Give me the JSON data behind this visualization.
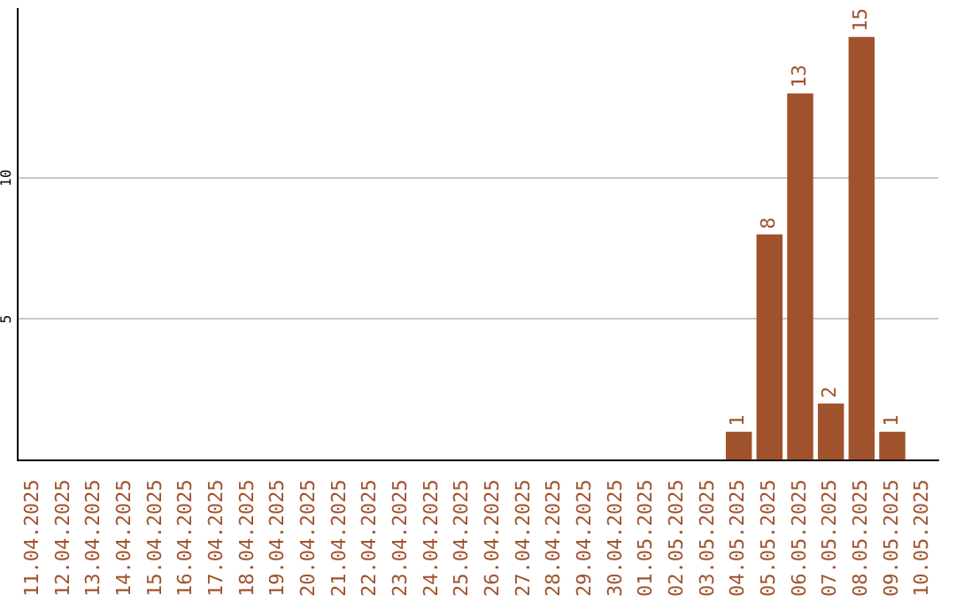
{
  "chart_data": {
    "type": "bar",
    "categories": [
      "11.04.2025",
      "12.04.2025",
      "13.04.2025",
      "14.04.2025",
      "15.04.2025",
      "16.04.2025",
      "17.04.2025",
      "18.04.2025",
      "19.04.2025",
      "20.04.2025",
      "21.04.2025",
      "22.04.2025",
      "23.04.2025",
      "24.04.2025",
      "25.04.2025",
      "26.04.2025",
      "27.04.2025",
      "28.04.2025",
      "29.04.2025",
      "30.04.2025",
      "01.05.2025",
      "02.05.2025",
      "03.05.2025",
      "04.05.2025",
      "05.05.2025",
      "06.05.2025",
      "07.05.2025",
      "08.05.2025",
      "09.05.2025",
      "10.05.2025"
    ],
    "values": [
      0,
      0,
      0,
      0,
      0,
      0,
      0,
      0,
      0,
      0,
      0,
      0,
      0,
      0,
      0,
      0,
      0,
      0,
      0,
      0,
      0,
      0,
      0,
      1,
      8,
      13,
      2,
      15,
      1,
      0
    ],
    "value_labels": [
      null,
      null,
      null,
      null,
      null,
      null,
      null,
      null,
      null,
      null,
      null,
      null,
      null,
      null,
      null,
      null,
      null,
      null,
      null,
      null,
      null,
      null,
      null,
      "1",
      "8",
      "13",
      "2",
      "15",
      "1",
      null
    ],
    "color": "#a0522d",
    "ylim": [
      0,
      16
    ],
    "yticks": [
      5,
      10
    ],
    "grid": "y",
    "legend": false
  }
}
